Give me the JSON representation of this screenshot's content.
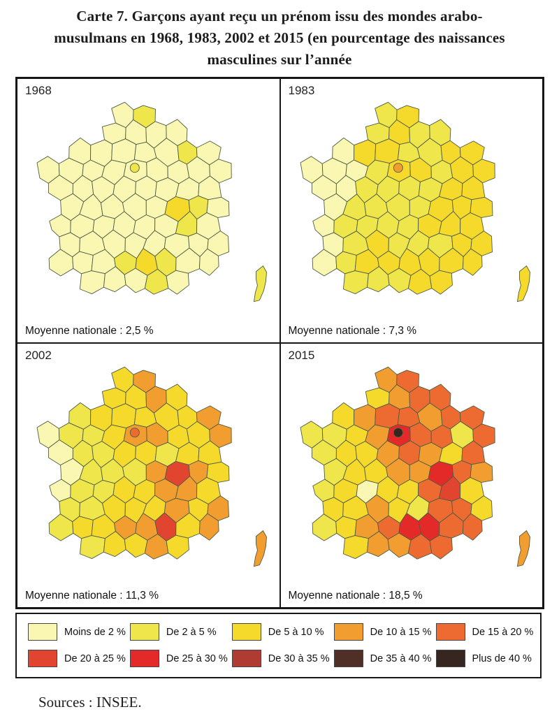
{
  "title": {
    "line1": "Carte 7. Garçons ayant reçu un prénom issu des mondes arabo-",
    "line2": "musulmans en 1968, 1983, 2002 et 2015 (en pourcentage des naissances",
    "line3": "masculines sur l’année"
  },
  "palette": {
    "classes": [
      "#FAF7B2",
      "#EEE64A",
      "#F5D92B",
      "#F29D2F",
      "#ED6B31",
      "#E2452F",
      "#E32A28",
      "#AF3B33",
      "#4F2F26",
      "#37261F"
    ],
    "cell_border": "#4F5D45",
    "frame_border": "#161616"
  },
  "panels": [
    {
      "year": "1968",
      "average_label": "Moyenne nationale : 2,5 %",
      "corsica": 1,
      "paris_dot": 1,
      "grid": [
        "....01....",
        "...0000...",
        "..0000010.",
        "000000000.",
        ".00000000.",
        ".00000210.",
        ".00000010.",
        ".00000000.",
        ".00012100.",
        "..00010..."
      ]
    },
    {
      "year": "1983",
      "average_label": "Moyenne nationale : 7,3 %",
      "corsica": 2,
      "paris_dot": 3,
      "grid": [
        "....12....",
        "...1211...",
        "..0221122.",
        "000122122.",
        ".00111122.",
        ".01111222.",
        ".01111222.",
        ".01211122.",
        ".01222222.",
        "..11122..."
      ]
    },
    {
      "year": "2002",
      "average_label": "Moyenne nationale : 11,3 %",
      "corsica": 3,
      "paris_dot": 4,
      "grid": [
        "....23....",
        "...2232...",
        "..1222223.",
        "011233223.",
        ".01122122.",
        ".01113532.",
        ".01122332.",
        ".11222323.",
        ".12233523.",
        "..12232..."
      ]
    },
    {
      "year": "2015",
      "average_label": "Moyenne nationale : 18,5 %",
      "corsica": 3,
      "paris_dot": 9,
      "grid": [
        "....34....",
        "...2344...",
        "..2344344.",
        "112364414.",
        ".12234324.",
        ".12233643.",
        ".12022452.",
        ".22321442.",
        ".12346644.",
        "..23344..."
      ]
    }
  ],
  "legend": {
    "items": [
      {
        "label": "Moins de 2 %",
        "class": 0
      },
      {
        "label": "De 2 à 5 %",
        "class": 1
      },
      {
        "label": "De 5 à 10 %",
        "class": 2
      },
      {
        "label": "De 10 à 15 %",
        "class": 3
      },
      {
        "label": "De 15 à 20 %",
        "class": 4
      },
      {
        "label": "De 20 à 25 %",
        "class": 5
      },
      {
        "label": "De 25 à 30 %",
        "class": 6
      },
      {
        "label": "De 30 à 35 %",
        "class": 7
      },
      {
        "label": "De 35 à 40 %",
        "class": 8
      },
      {
        "label": "Plus de 40 %",
        "class": 9
      }
    ]
  },
  "sources": "Sources : INSEE."
}
